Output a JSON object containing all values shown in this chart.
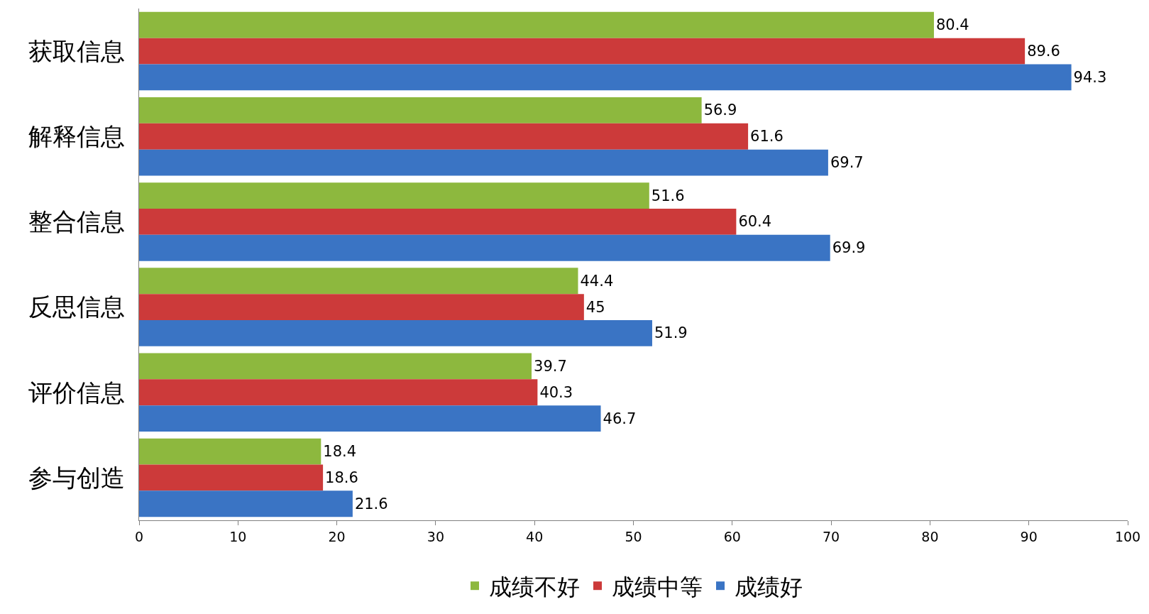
{
  "chart_data": {
    "type": "bar",
    "orientation": "horizontal",
    "categories": [
      "获取信息",
      "解释信息",
      "整合信息",
      "反思信息",
      "评价信息",
      "参与创造"
    ],
    "series": [
      {
        "name": "成绩不好",
        "color": "#8db83e",
        "values": [
          80.4,
          56.9,
          51.6,
          44.4,
          39.7,
          18.4
        ]
      },
      {
        "name": "成绩中等",
        "color": "#cc3a3a",
        "values": [
          89.6,
          61.6,
          60.4,
          45,
          40.3,
          18.6
        ]
      },
      {
        "name": "成绩好",
        "color": "#3a74c4",
        "values": [
          94.3,
          69.7,
          69.9,
          51.9,
          46.7,
          21.6
        ]
      }
    ],
    "xlim": [
      0,
      100
    ],
    "xticks": [
      0,
      10,
      20,
      30,
      40,
      50,
      60,
      70,
      80,
      90,
      100
    ],
    "legend": "bottom",
    "data_labels": true
  }
}
